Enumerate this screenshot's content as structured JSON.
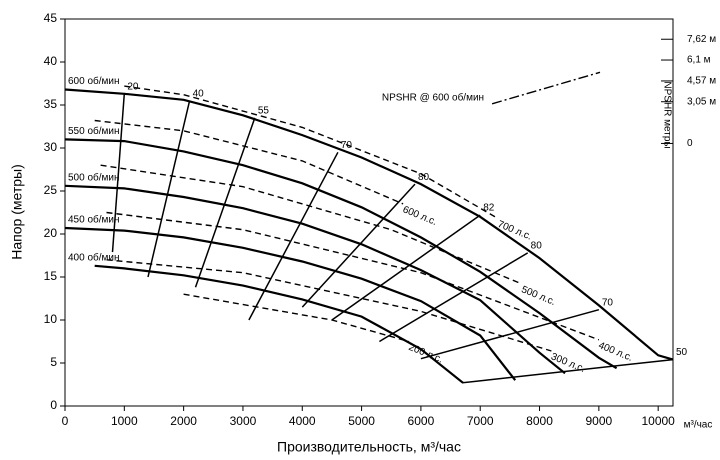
{
  "chart_data": {
    "type": "line",
    "x_label": "Производительность, м³/час",
    "x_unit": "м³/час",
    "y_label": "Напор (метры)",
    "y2_label": "NPSHR метры",
    "xlim": [
      0,
      10250
    ],
    "ylim": [
      0,
      45
    ],
    "xticks": [
      0,
      1000,
      2000,
      3000,
      4000,
      5000,
      6000,
      7000,
      8000,
      9000,
      10000
    ],
    "yticks": [
      0,
      5,
      10,
      15,
      20,
      25,
      30,
      35,
      40,
      45
    ],
    "y2lim": [
      -19.2,
      9.1
    ],
    "y2ticks": [
      {
        "value": 0,
        "label": "0"
      },
      {
        "value": 3.05,
        "label": "3,05 м"
      },
      {
        "value": 4.57,
        "label": "4,57 м"
      },
      {
        "value": 6.1,
        "label": "6,1 м"
      },
      {
        "value": 7.62,
        "label": "7,62 м"
      }
    ],
    "color": "#000000",
    "speed_curves": [
      {
        "name": "600 об/мин",
        "x": [
          0,
          1000,
          2000,
          3000,
          4000,
          5000,
          6000,
          7000,
          8000,
          9000,
          10000,
          10250
        ],
        "values": [
          36.8,
          36.3,
          35.6,
          33.8,
          31.5,
          28.9,
          25.8,
          22,
          17.2,
          11.7,
          5.9,
          5.4
        ]
      },
      {
        "name": "550 об/мин",
        "x": [
          0,
          1000,
          2000,
          3000,
          4000,
          5000,
          6000,
          7000,
          8000,
          9000,
          9300
        ],
        "values": [
          31,
          30.8,
          29.6,
          28,
          25.9,
          23.1,
          19.6,
          15.6,
          10.8,
          5.6,
          4.4
        ]
      },
      {
        "name": "500 об/мин",
        "x": [
          0,
          1000,
          2000,
          3000,
          4000,
          5000,
          6000,
          7000,
          8000,
          8430
        ],
        "values": [
          25.6,
          25.3,
          24.3,
          23,
          21.2,
          18.8,
          15.8,
          12.3,
          6.2,
          3.8
        ]
      },
      {
        "name": "450 об/мин",
        "x": [
          0,
          1000,
          2000,
          3000,
          4000,
          5000,
          6000,
          7000,
          7590
        ],
        "values": [
          20.7,
          20.4,
          19.6,
          18.4,
          16.8,
          14.8,
          12.2,
          8.2,
          3
        ]
      },
      {
        "name": "400 об/мин",
        "x": [
          500,
          1000,
          2000,
          3000,
          4000,
          5000,
          6000,
          6710
        ],
        "values": [
          16.3,
          16,
          15.2,
          14,
          12.4,
          10.4,
          6.6,
          2.7
        ]
      }
    ],
    "power_curves": [
      {
        "name": "700 л.с.",
        "x": [
          1000,
          2000,
          4000,
          6000,
          7300
        ],
        "values": [
          37.2,
          36.2,
          32.4,
          27,
          21.8
        ]
      },
      {
        "name": "600 л.с.",
        "x": [
          500,
          2000,
          4000,
          5700
        ],
        "values": [
          33.2,
          32,
          28.5,
          23.5
        ]
      },
      {
        "name": "500 л.с.",
        "x": [
          600,
          3000,
          5500,
          7700
        ],
        "values": [
          28,
          25.5,
          20.5,
          14.2
        ]
      },
      {
        "name": "400 л.с.",
        "x": [
          700,
          3000,
          6000,
          9000
        ],
        "values": [
          22.5,
          20.5,
          15.5,
          7.7
        ]
      },
      {
        "name": "300 л.с.",
        "x": [
          700,
          3000,
          6000,
          8200
        ],
        "values": [
          17,
          15.5,
          11,
          6.4
        ]
      },
      {
        "name": "200 л.с.",
        "x": [
          2000,
          4500,
          5800
        ],
        "values": [
          13,
          10,
          7.5
        ]
      }
    ],
    "efficiency_curves": [
      {
        "name": "20",
        "x": [
          1000,
          800
        ],
        "values": [
          36.3,
          17.9
        ]
      },
      {
        "name": "40",
        "x": [
          2100,
          1400
        ],
        "values": [
          35.5,
          15
        ]
      },
      {
        "name": "55",
        "x": [
          3200,
          2200
        ],
        "values": [
          33.5,
          13.8
        ]
      },
      {
        "name": "70",
        "x": [
          4600,
          3100
        ],
        "values": [
          29.5,
          10
        ]
      },
      {
        "name": "80",
        "x": [
          5900,
          4000
        ],
        "values": [
          25.8,
          11.5
        ]
      },
      {
        "name": "82",
        "x": [
          7000,
          4500
        ],
        "values": [
          22.2,
          10
        ]
      },
      {
        "name": "80",
        "x": [
          7800,
          5300
        ],
        "values": [
          17.8,
          7.5
        ]
      },
      {
        "name": "70",
        "x": [
          9000,
          6000
        ],
        "values": [
          11.2,
          5.5
        ]
      },
      {
        "name": "50",
        "x": [
          10250,
          6700
        ],
        "values": [
          5.4,
          2.7
        ]
      }
    ],
    "npshr_curve": {
      "name": "NPSHR @ 600 об/мин",
      "axis": "y2",
      "x": [
        7200,
        9020
      ],
      "values": [
        2.9,
        5.2
      ]
    }
  }
}
